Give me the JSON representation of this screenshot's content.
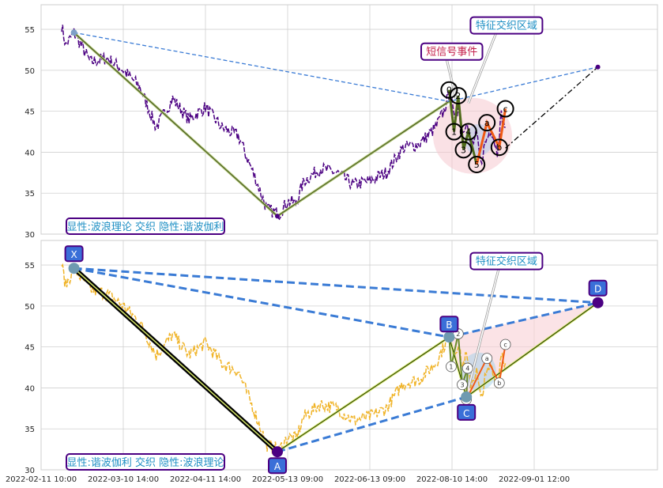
{
  "chart_data": [
    {
      "type": "line",
      "panel": "top",
      "ylim": [
        30,
        58
      ],
      "yticks": [
        30,
        35,
        40,
        45,
        50,
        55
      ],
      "grid": true,
      "xticks": [
        {
          "x": 0,
          "label": "2022-02-11 10:00"
        },
        {
          "x": 20,
          "label": "2022-03-10 14:00"
        },
        {
          "x": 40,
          "label": "2022-04-11 14:00"
        },
        {
          "x": 60,
          "label": "2022-05-13 09:00"
        },
        {
          "x": 80,
          "label": "2022-06-13 09:00"
        },
        {
          "x": 100,
          "label": "2022-08-10 14:00"
        },
        {
          "x": 120,
          "label": "2022-09-01 12:00"
        }
      ],
      "xlim": [
        0,
        150
      ],
      "price_anchors": [
        [
          5,
          55.5
        ],
        [
          6,
          53
        ],
        [
          8,
          54.6
        ],
        [
          12,
          51
        ],
        [
          16,
          51.5
        ],
        [
          20,
          50
        ],
        [
          24,
          48
        ],
        [
          28,
          43
        ],
        [
          32,
          46.5
        ],
        [
          36,
          44
        ],
        [
          40,
          45.5
        ],
        [
          44,
          43
        ],
        [
          48,
          42
        ],
        [
          52,
          37
        ],
        [
          55,
          33
        ],
        [
          58,
          32.5
        ],
        [
          60,
          34
        ],
        [
          62,
          33.8
        ],
        [
          64,
          36.5
        ],
        [
          68,
          38
        ],
        [
          72,
          37.5
        ],
        [
          76,
          36
        ],
        [
          80,
          36.5
        ],
        [
          84,
          37.5
        ],
        [
          88,
          40.5
        ],
        [
          92,
          41
        ],
        [
          96,
          43
        ],
        [
          98,
          45
        ],
        [
          99.5,
          47.5
        ],
        [
          100.5,
          44
        ],
        [
          101.5,
          45.5
        ],
        [
          102.5,
          42.5
        ],
        [
          103.5,
          44
        ],
        [
          104.5,
          40.5
        ],
        [
          106,
          42
        ],
        [
          107,
          38.5
        ],
        [
          108,
          41
        ],
        [
          109.5,
          43
        ],
        [
          111,
          40
        ],
        [
          112,
          44.5
        ],
        [
          113,
          43
        ]
      ],
      "wave_lines": [
        [
          [
            8,
            54.6
          ],
          [
            57.5,
            32.2
          ],
          [
            99.3,
            46.2
          ]
        ]
      ],
      "dashed_blue": [
        [
          [
            8,
            54.6
          ],
          [
            99.3,
            46.2
          ],
          [
            135.5,
            50.4
          ]
        ]
      ],
      "dashdot_black": [
        [
          [
            113,
            40.5
          ],
          [
            135.5,
            50.4
          ]
        ]
      ],
      "wave_points": [
        {
          "label": "0",
          "x": 99.3,
          "y": 47.6
        },
        {
          "label": "1",
          "x": 100.5,
          "y": 42.5
        },
        {
          "label": "2",
          "x": 101.5,
          "y": 46.9
        },
        {
          "label": "3",
          "x": 102.8,
          "y": 40.3
        },
        {
          "label": "4",
          "x": 104,
          "y": 42.5
        },
        {
          "label": "5",
          "x": 106,
          "y": 38.5
        },
        {
          "label": "a",
          "x": 108.5,
          "y": 43.6
        },
        {
          "label": "b",
          "x": 111.5,
          "y": 40.6
        },
        {
          "label": "c",
          "x": 113,
          "y": 45.3
        }
      ],
      "callouts": [
        {
          "text": "特征交织区域",
          "color": "#1e8fc4",
          "box_x": 104.5,
          "box_y": 56.4,
          "tip_x": 104,
          "tip_y": 46
        },
        {
          "text": "短信号事件",
          "color": "#c41e4a",
          "box_x": 92.5,
          "box_y": 53.2,
          "tip_x": 101,
          "tip_y": 46.5
        }
      ],
      "legend_label": "显性:波浪理论 交织 隐性:谐波伽利"
    },
    {
      "type": "line",
      "panel": "bottom",
      "ylim": [
        30,
        58
      ],
      "yticks": [
        30,
        35,
        40,
        45,
        50,
        55
      ],
      "grid": true,
      "xlim": [
        0,
        150
      ],
      "price_anchors": [
        [
          5,
          55
        ],
        [
          6,
          52.5
        ],
        [
          8,
          54.6
        ],
        [
          12,
          52
        ],
        [
          16,
          51.5
        ],
        [
          20,
          50
        ],
        [
          24,
          48
        ],
        [
          28,
          44
        ],
        [
          32,
          46.5
        ],
        [
          36,
          44
        ],
        [
          40,
          45.5
        ],
        [
          44,
          43
        ],
        [
          48,
          42
        ],
        [
          52,
          37
        ],
        [
          55,
          33
        ],
        [
          58,
          32.5
        ],
        [
          60,
          34
        ],
        [
          62,
          33.8
        ],
        [
          64,
          36.5
        ],
        [
          68,
          38
        ],
        [
          72,
          37.5
        ],
        [
          76,
          36
        ],
        [
          80,
          36.5
        ],
        [
          84,
          37.5
        ],
        [
          88,
          40.5
        ],
        [
          92,
          41
        ],
        [
          96,
          43
        ],
        [
          98,
          45
        ],
        [
          99.5,
          47
        ],
        [
          100.5,
          44
        ],
        [
          101.5,
          45.5
        ],
        [
          102.5,
          42.5
        ],
        [
          103.5,
          44
        ],
        [
          104.5,
          40.5
        ],
        [
          106,
          42
        ],
        [
          107,
          38.5
        ],
        [
          108,
          41
        ],
        [
          109.5,
          43
        ],
        [
          111,
          40
        ],
        [
          112,
          44.5
        ],
        [
          113,
          43
        ]
      ],
      "harmonic_points": [
        {
          "label": "X",
          "x": 8,
          "y": 54.6
        },
        {
          "label": "A",
          "x": 57.5,
          "y": 32.2
        },
        {
          "label": "B",
          "x": 99.3,
          "y": 46.2
        },
        {
          "label": "C",
          "x": 103.5,
          "y": 38.9
        },
        {
          "label": "D",
          "x": 135.5,
          "y": 50.4
        }
      ],
      "wave_points": [
        {
          "label": "1",
          "x": 99.8,
          "y": 42.6
        },
        {
          "label": "2",
          "x": 101.5,
          "y": 46.6
        },
        {
          "label": "3",
          "x": 102.5,
          "y": 40.4
        },
        {
          "label": "4",
          "x": 103.8,
          "y": 42.4
        },
        {
          "label": "5",
          "x": 103.5,
          "y": 38.6
        },
        {
          "label": "a",
          "x": 108.5,
          "y": 43.6
        },
        {
          "label": "b",
          "x": 111.5,
          "y": 40.6
        },
        {
          "label": "c",
          "x": 113,
          "y": 45.3
        }
      ],
      "callouts": [
        {
          "text": "特征交织区域",
          "color": "#1e8fc4",
          "box_x": 104.5,
          "box_y": 56.4,
          "tip_x": 104,
          "tip_y": 40
        }
      ],
      "legend_label": "显性:谐波伽利 交织 隐性:波浪理论"
    }
  ]
}
